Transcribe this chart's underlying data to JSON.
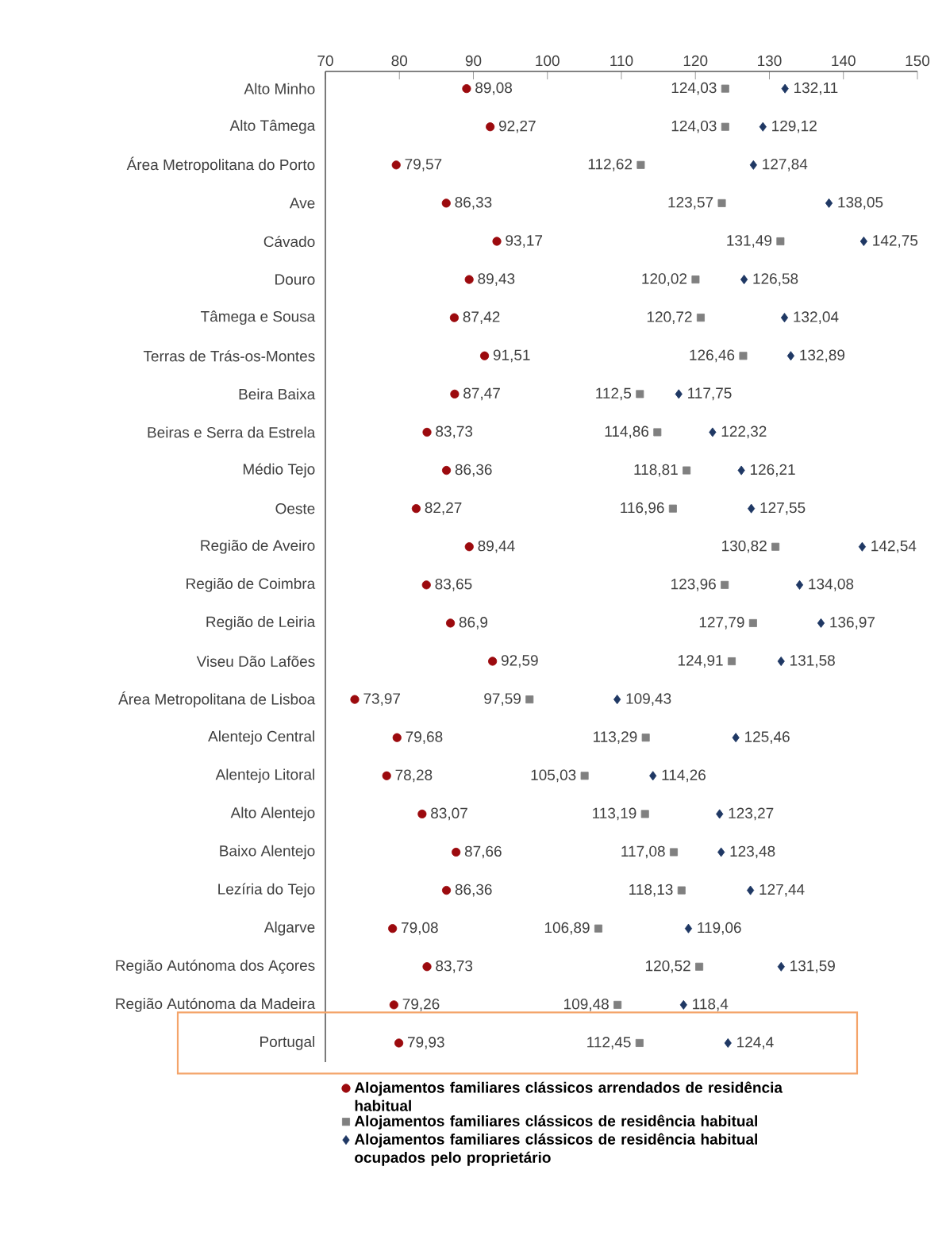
{
  "chart_data": {
    "type": "scatter",
    "orientation": "horizontal",
    "categories": [
      "Alto Minho",
      "Alto Tâmega",
      "Área Metropolitana do Porto",
      "Ave",
      "Cávado",
      "Douro",
      "Tâmega e Sousa",
      "Terras de Trás-os-Montes",
      "Beira Baixa",
      "Beiras e Serra da Estrela",
      "Médio Tejo",
      "Oeste",
      "Região de Aveiro",
      "Região de Coimbra",
      "Região de Leiria",
      "Viseu Dão Lafões",
      "Área Metropolitana de Lisboa",
      "Alentejo Central",
      "Alentejo Litoral",
      "Alto Alentejo",
      "Baixo Alentejo",
      "Lezíria do Tejo",
      "Algarve",
      "Região Autónoma dos Açores",
      "Região Autónoma da Madeira",
      "Portugal"
    ],
    "series": [
      {
        "name": "Alojamentos familiares clássicos arrendados de residência habitual",
        "color": "#9c0a0e",
        "marker": "circle",
        "values": [
          89.08,
          92.27,
          79.57,
          86.33,
          93.17,
          89.43,
          87.42,
          91.51,
          87.47,
          83.73,
          86.36,
          82.27,
          89.44,
          83.65,
          86.9,
          92.59,
          73.97,
          79.68,
          78.28,
          83.07,
          87.66,
          86.36,
          79.08,
          83.73,
          79.26,
          79.93
        ],
        "value_labels": [
          "89,08",
          "92,27",
          "79,57",
          "86,33",
          "93,17",
          "89,43",
          "87,42",
          "91,51",
          "87,47",
          "83,73",
          "86,36",
          "82,27",
          "89,44",
          "83,65",
          "86,9",
          "92,59",
          "73,97",
          "79,68",
          "78,28",
          "83,07",
          "87,66",
          "86,36",
          "79,08",
          "83,73",
          "79,26",
          "79,93"
        ]
      },
      {
        "name": "Alojamentos familiares clássicos de residência habitual",
        "color": "#808080",
        "marker": "square",
        "values": [
          124.03,
          124.03,
          112.62,
          123.57,
          131.49,
          120.02,
          120.72,
          126.46,
          112.5,
          114.86,
          118.81,
          116.96,
          130.82,
          123.96,
          127.79,
          124.91,
          97.59,
          113.29,
          105.03,
          113.19,
          117.08,
          118.13,
          106.89,
          120.52,
          109.48,
          112.45
        ],
        "value_labels": [
          "124,03",
          "124,03",
          "112,62",
          "123,57",
          "131,49",
          "120,02",
          "120,72",
          "126,46",
          "112,5",
          "114,86",
          "118,81",
          "116,96",
          "130,82",
          "123,96",
          "127,79",
          "124,91",
          "97,59",
          "113,29",
          "105,03",
          "113,19",
          "117,08",
          "118,13",
          "106,89",
          "120,52",
          "109,48",
          "112,45"
        ]
      },
      {
        "name": "Alojamentos familiares clássicos de residência habitual ocupados pelo proprietário",
        "color": "#1f3864",
        "marker": "diamond",
        "values": [
          132.11,
          129.12,
          127.84,
          138.05,
          142.75,
          126.58,
          132.04,
          132.89,
          117.75,
          122.32,
          126.21,
          127.55,
          142.54,
          134.08,
          136.97,
          131.58,
          109.43,
          125.46,
          114.26,
          123.27,
          123.48,
          127.44,
          119.06,
          131.59,
          118.4,
          124.4
        ],
        "value_labels": [
          "132,11",
          "129,12",
          "127,84",
          "138,05",
          "142,75",
          "126,58",
          "132,04",
          "132,89",
          "117,75",
          "122,32",
          "126,21",
          "127,55",
          "142,54",
          "134,08",
          "136,97",
          "131,58",
          "109,43",
          "125,46",
          "114,26",
          "123,27",
          "123,48",
          "127,44",
          "119,06",
          "131,59",
          "118,4",
          "124,4"
        ]
      }
    ],
    "xlim": [
      70,
      150
    ],
    "xticks": [
      70,
      80,
      90,
      100,
      110,
      120,
      130,
      140,
      150
    ],
    "grid": false,
    "legend": "bottom"
  }
}
